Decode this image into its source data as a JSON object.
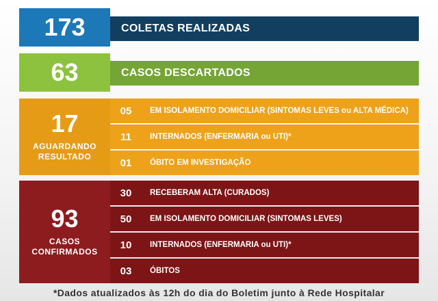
{
  "colors": {
    "blue_badge": "#1d78b8",
    "blue_bar": "#123f60",
    "green_badge": "#8dc23f",
    "green_bar": "#74a535",
    "orange_badge": "#e69b16",
    "orange_row": "#eea21a",
    "red_badge": "#8c1c1e",
    "red_row": "#7d1517"
  },
  "coletas": {
    "number": "173",
    "label": "COLETAS REALIZADAS"
  },
  "descartados": {
    "number": "63",
    "label": "CASOS DESCARTADOS"
  },
  "aguardando": {
    "number": "17",
    "label_line1": "AGUARDANDO",
    "label_line2": "RESULTADO",
    "rows": [
      {
        "num": "05",
        "text": "EM ISOLAMENTO DOMICILIAR (SINTOMAS LEVES ou ALTA MÉDICA)"
      },
      {
        "num": "11",
        "text": "INTERNADOS (ENFERMARIA ou UTI)*"
      },
      {
        "num": "01",
        "text": "ÓBITO EM INVESTIGAÇÃO"
      }
    ]
  },
  "confirmados": {
    "number": "93",
    "label_line1": "CASOS",
    "label_line2": "CONFIRMADOS",
    "rows": [
      {
        "num": "30",
        "text": "RECEBERAM ALTA (CURADOS)"
      },
      {
        "num": "50",
        "text": "EM ISOLAMENTO DOMICILIAR (SINTOMAS LEVES)"
      },
      {
        "num": "10",
        "text": "INTERNADOS (ENFERMARIA ou UTI)*"
      },
      {
        "num": "03",
        "text": "ÓBITOS"
      }
    ]
  },
  "footnote": "*Dados atualizados às 12h do dia do Boletim junto à Rede Hospitalar"
}
